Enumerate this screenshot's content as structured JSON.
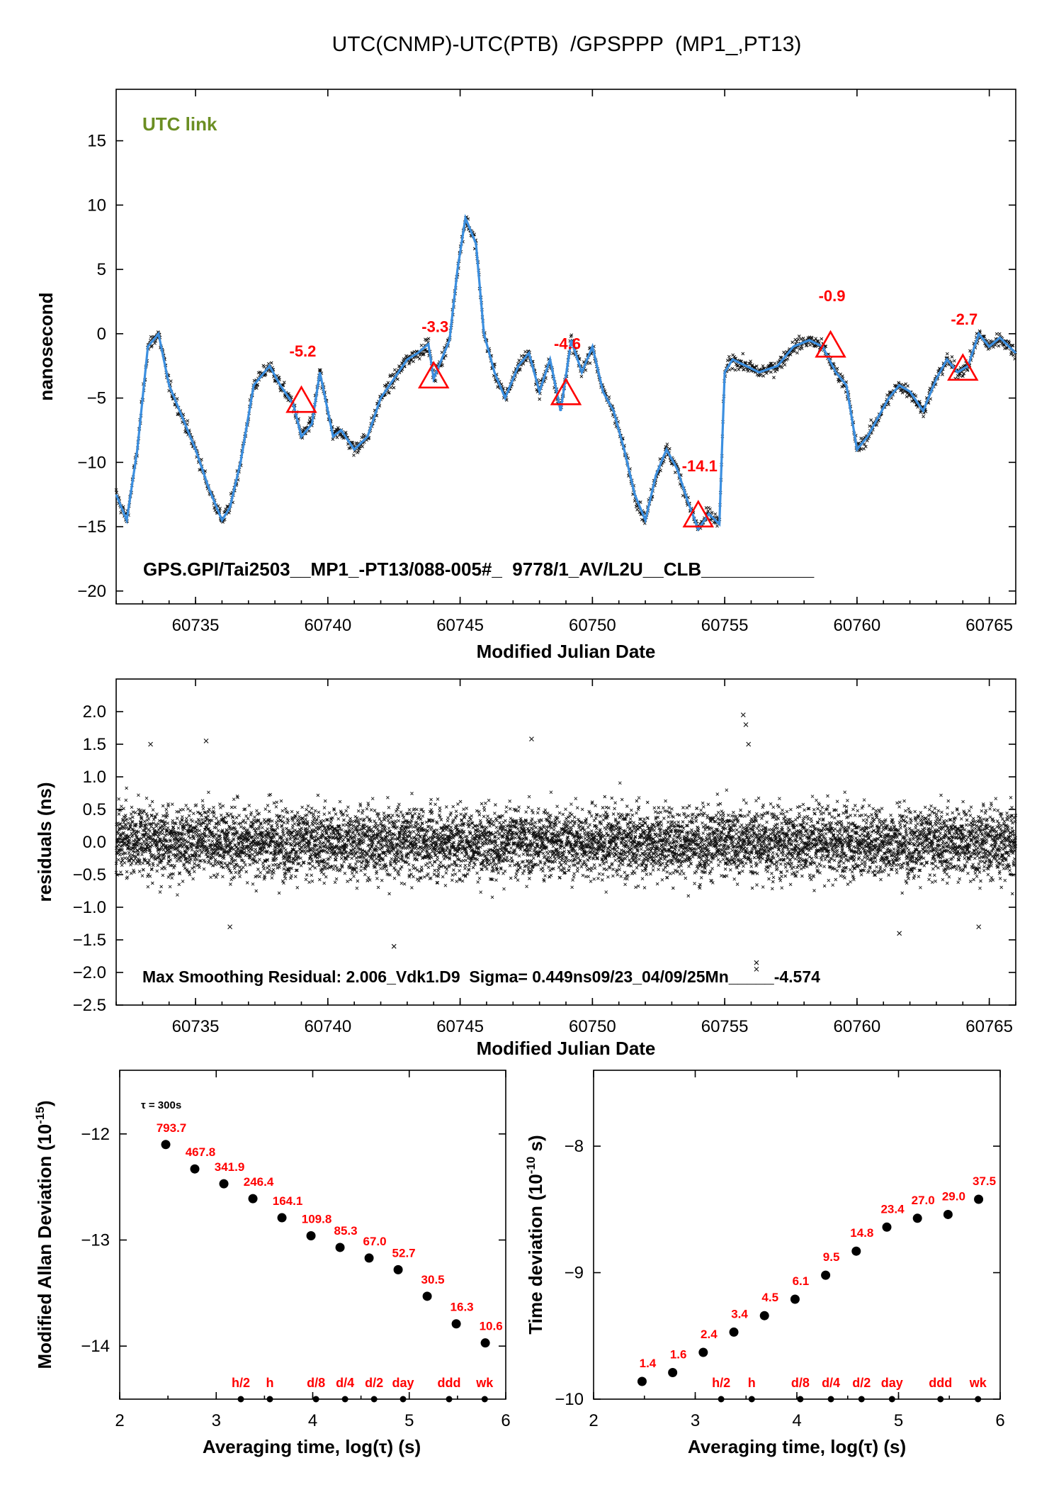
{
  "title": "UTC(CNMP)-UTC(PTB)  /GPSPPP  (MP1_,PT13)",
  "chart_data": [
    {
      "type": "line",
      "panel": "time-series",
      "xlabel": "Modified Julian Date",
      "ylabel": "nanosecond",
      "xlim": [
        60732,
        60766
      ],
      "ylim": [
        -21,
        19
      ],
      "xticks": [
        60735,
        60740,
        60745,
        60750,
        60755,
        60760,
        60765
      ],
      "yticks": [
        -20,
        -15,
        -10,
        -5,
        0,
        5,
        10,
        15
      ],
      "link_label": "UTC link",
      "link_color": "#6b8e23",
      "footer": "GPS.GPI/Tai2503__MP1_-PT13/088-005#_  9778/1_AV/L2U__CLB___________",
      "series": [
        {
          "color": "#3b8fe0",
          "x": [
            60732,
            60732.4,
            60732.8,
            60733.2,
            60733.6,
            60734,
            60734.5,
            60735,
            60735.5,
            60736,
            60736.3,
            60736.7,
            60737.2,
            60737.8,
            60738.2,
            60738.7,
            60739,
            60739.4,
            60739.7,
            60740.2,
            60740.5,
            60741,
            60741.5,
            60742,
            60742.5,
            60743,
            60743.4,
            60743.8,
            60744,
            60744.3,
            60744.6,
            60744.9,
            60745.2,
            60745.6,
            60745.9,
            60746.3,
            60746.7,
            60747.2,
            60747.6,
            60748,
            60748.4,
            60748.8,
            60749.2,
            60749.6,
            60750,
            60750.4,
            60750.8,
            60751.2,
            60751.6,
            60752,
            60752.4,
            60752.8,
            60753.2,
            60753.6,
            60754,
            60754.4,
            60754.8,
            60755,
            60755.3,
            60755.8,
            60756.3,
            60757,
            60757.6,
            60758.2,
            60758.7,
            60759.2,
            60759.6,
            60760,
            60760.4,
            60760.8,
            60761.2,
            60761.6,
            60762,
            60762.5,
            60763,
            60763.4,
            60763.8,
            60764.2,
            60764.6,
            60765,
            60765.4,
            60766
          ],
          "y": [
            -12.5,
            -14.5,
            -9,
            -1,
            0,
            -4,
            -6.5,
            -9,
            -12,
            -14.5,
            -13.5,
            -10,
            -4,
            -2.5,
            -4,
            -5.5,
            -8,
            -7,
            -3,
            -8,
            -7.5,
            -9,
            -8,
            -5,
            -3.5,
            -2,
            -1.5,
            -0.8,
            -3.5,
            -2,
            -0.5,
            5,
            9,
            7,
            0,
            -3,
            -5,
            -2.5,
            -1.5,
            -4.5,
            -2,
            -6,
            -0.5,
            -3,
            -1,
            -4.5,
            -6,
            -9,
            -12.5,
            -14.5,
            -11,
            -9,
            -10.5,
            -13,
            -15.2,
            -14,
            -14.8,
            -3,
            -2,
            -2.5,
            -3,
            -2.5,
            -1,
            -0.5,
            -1,
            -3,
            -4,
            -9,
            -8,
            -6.5,
            -5,
            -4,
            -4.5,
            -6,
            -3.5,
            -2,
            -3,
            -2.5,
            0,
            -1,
            -0.3,
            -1.5
          ]
        }
      ],
      "markers": [
        {
          "x": 60739,
          "y": -5.2,
          "label": "-5.2"
        },
        {
          "x": 60744,
          "y": -3.3,
          "label": "-3.3"
        },
        {
          "x": 60749,
          "y": -4.6,
          "label": "-4.6"
        },
        {
          "x": 60754,
          "y": -14.1,
          "label": "-14.1"
        },
        {
          "x": 60759,
          "y": -0.9,
          "label": "-0.9"
        },
        {
          "x": 60764,
          "y": -2.7,
          "label": "-2.7"
        }
      ]
    },
    {
      "type": "scatter",
      "panel": "residuals",
      "xlabel": "Modified Julian Date",
      "ylabel": "residuals (ns)",
      "xlim": [
        60732,
        60766
      ],
      "ylim": [
        -2.5,
        2.5
      ],
      "xticks": [
        60735,
        60740,
        60745,
        60750,
        60755,
        60760,
        60765
      ],
      "yticks": [
        "-2.5",
        "-2.0",
        "-1.5",
        "-1.0",
        "-0.5",
        "0.0",
        "0.5",
        "1.0",
        "1.5",
        "2.0"
      ],
      "footer": "Max Smoothing Residual: 2.006_Vdk1.D9  Sigma= 0.449ns09/23_04/09/25Mn_____-4.574",
      "sigma": 0.449,
      "max_residual": 2.006,
      "outliers": [
        {
          "x": 60755.7,
          "y": 1.95
        },
        {
          "x": 60755.8,
          "y": 1.8
        },
        {
          "x": 60755.9,
          "y": 1.5
        },
        {
          "x": 60733.3,
          "y": 1.5
        },
        {
          "x": 60735.4,
          "y": 1.55
        },
        {
          "x": 60747.7,
          "y": 1.58
        },
        {
          "x": 60742.5,
          "y": -1.6
        },
        {
          "x": 60756.2,
          "y": -1.85
        },
        {
          "x": 60756.2,
          "y": -1.95
        },
        {
          "x": 60736.3,
          "y": -1.3
        },
        {
          "x": 60761.6,
          "y": -1.4
        },
        {
          "x": 60764.6,
          "y": -1.3
        }
      ]
    },
    {
      "type": "scatter",
      "panel": "modified-allan-deviation",
      "xlabel": "Averaging time, log(τ) (s)",
      "ylabel": "Modified Allan Deviation (10",
      "ylabel_exp": "-15",
      "ylabel_end": ")",
      "tau_label": "τ = 300s",
      "xlim": [
        2,
        6
      ],
      "ylim": [
        -14.5,
        -11.4
      ],
      "xticks": [
        2,
        3,
        4,
        5,
        6
      ],
      "yticks": [
        -14,
        -13,
        -12
      ],
      "x": [
        2.477,
        2.778,
        3.079,
        3.38,
        3.681,
        3.982,
        4.283,
        4.584,
        4.885,
        5.186,
        5.487,
        5.788
      ],
      "y": [
        -12.1,
        -12.33,
        -12.47,
        -12.61,
        -12.79,
        -12.96,
        -13.07,
        -13.17,
        -13.28,
        -13.53,
        -13.79,
        -13.97
      ],
      "labels": [
        "793.7",
        "467.8",
        "341.9",
        "246.4",
        "164.1",
        "109.8",
        "85.3",
        "67.0",
        "52.7",
        "30.5",
        "16.3",
        "10.6"
      ],
      "reference_x": [
        3.255,
        3.556,
        4.034,
        4.335,
        4.636,
        4.936,
        5.413,
        5.782
      ],
      "reference_labels": [
        "h/2",
        "h",
        "d/8",
        "d/4",
        "d/2",
        "day",
        "ddd",
        "wk"
      ]
    },
    {
      "type": "scatter",
      "panel": "time-deviation",
      "xlabel": "Averaging time, log(τ) (s)",
      "ylabel": "Time deviation (10",
      "ylabel_exp": "-10",
      "ylabel_end": " s)",
      "xlim": [
        2,
        6
      ],
      "ylim": [
        -10,
        -7.4
      ],
      "xticks": [
        2,
        3,
        4,
        5,
        6
      ],
      "yticks": [
        -10,
        -9,
        -8
      ],
      "x": [
        2.477,
        2.778,
        3.079,
        3.38,
        3.681,
        3.982,
        4.283,
        4.584,
        4.885,
        5.186,
        5.487,
        5.788
      ],
      "y": [
        -9.86,
        -9.79,
        -9.63,
        -9.47,
        -9.34,
        -9.21,
        -9.02,
        -8.83,
        -8.64,
        -8.57,
        -8.54,
        -8.42
      ],
      "labels": [
        "1.4",
        "1.6",
        "2.4",
        "3.4",
        "4.5",
        "6.1",
        "9.5",
        "14.8",
        "23.4",
        "27.0",
        "29.0",
        "37.5"
      ],
      "reference_x": [
        3.255,
        3.556,
        4.034,
        4.335,
        4.636,
        4.936,
        5.413,
        5.782
      ],
      "reference_labels": [
        "h/2",
        "h",
        "d/8",
        "d/4",
        "d/2",
        "day",
        "ddd",
        "wk"
      ]
    }
  ]
}
